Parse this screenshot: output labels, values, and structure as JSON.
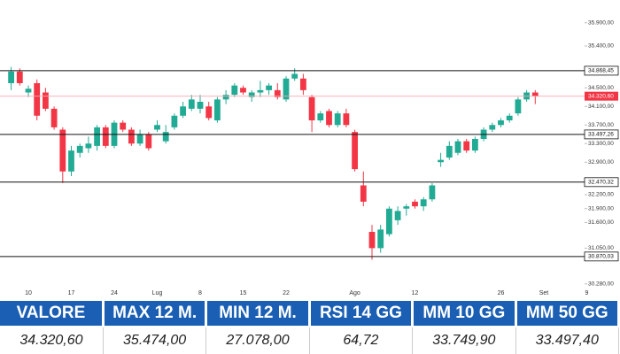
{
  "chart_data": {
    "type": "candlestick",
    "categories": [
      null,
      null,
      "10",
      null,
      null,
      null,
      null,
      "17",
      null,
      null,
      null,
      null,
      "24",
      null,
      null,
      null,
      null,
      "Lug",
      null,
      null,
      null,
      null,
      "8",
      null,
      null,
      null,
      null,
      "15",
      null,
      null,
      null,
      null,
      "22",
      null,
      null,
      null,
      null,
      null,
      null,
      null,
      "Ago",
      null,
      null,
      null,
      null,
      null,
      null,
      "12",
      null,
      null,
      null,
      null,
      null,
      null,
      null,
      null,
      null,
      "26",
      null,
      null,
      null,
      null,
      "Set",
      null,
      null,
      null,
      null,
      "9"
    ],
    "series": {
      "open": [
        34600,
        34850,
        34400,
        34600,
        34400,
        34050,
        33600,
        32700,
        33100,
        33200,
        33250,
        33650,
        33250,
        33750,
        33600,
        33300,
        33500,
        33600,
        33350,
        33650,
        33900,
        34050,
        34050,
        34100,
        33800,
        34250,
        34350,
        34500,
        34300,
        34400,
        34450,
        34450,
        34250,
        34700,
        34700,
        34300,
        33800,
        34000,
        33700,
        33950,
        33550,
        32400,
        31400,
        31050,
        31350,
        31650,
        31900,
        32050,
        31950,
        32100,
        32900,
        33000,
        33100,
        33350,
        33150,
        33400,
        33600,
        33700,
        33800,
        33950,
        34250,
        34400,
        null,
        null,
        null,
        null,
        null,
        null
      ],
      "high": [
        34950,
        34920,
        34550,
        34680,
        34500,
        34100,
        33650,
        33250,
        33300,
        33450,
        33700,
        33700,
        33800,
        33800,
        33650,
        33600,
        33550,
        33800,
        33700,
        33950,
        34200,
        34350,
        34350,
        34200,
        34300,
        34450,
        34600,
        34550,
        34450,
        34650,
        34600,
        34600,
        34750,
        34920,
        34800,
        34350,
        34000,
        34050,
        34000,
        34050,
        33600,
        32700,
        31550,
        31550,
        31950,
        31950,
        32000,
        32100,
        32150,
        32450,
        33100,
        33350,
        33400,
        33400,
        33450,
        33650,
        33750,
        33850,
        33950,
        34300,
        34450,
        34450,
        null,
        null,
        null,
        null,
        null,
        null
      ],
      "low": [
        34450,
        34550,
        34300,
        33800,
        34000,
        33600,
        32450,
        32600,
        33000,
        33100,
        33150,
        33200,
        33200,
        33550,
        33250,
        33250,
        33150,
        33550,
        33300,
        33600,
        33850,
        34000,
        33950,
        33800,
        33750,
        34150,
        34300,
        34350,
        34200,
        34300,
        34350,
        34250,
        34200,
        34650,
        34350,
        33550,
        33750,
        33650,
        33650,
        33650,
        32700,
        31950,
        30800,
        30950,
        31300,
        31550,
        31750,
        31900,
        31850,
        32050,
        32800,
        32950,
        33050,
        33100,
        33100,
        33350,
        33550,
        33650,
        33750,
        33900,
        34200,
        34150,
        null,
        null,
        null,
        null,
        null,
        null
      ],
      "close": [
        34850,
        34600,
        34480,
        33900,
        34050,
        33650,
        32700,
        33150,
        33250,
        33300,
        33650,
        33250,
        33750,
        33600,
        33300,
        33500,
        33200,
        33700,
        33550,
        33900,
        34100,
        34250,
        34200,
        33850,
        34250,
        34350,
        34550,
        34400,
        34400,
        34450,
        34550,
        34300,
        34700,
        34800,
        34450,
        33800,
        33950,
        33700,
        33950,
        33700,
        32750,
        32050,
        31050,
        31450,
        31900,
        31850,
        31950,
        31950,
        32100,
        32400,
        32950,
        33250,
        33350,
        33150,
        33400,
        33600,
        33700,
        33800,
        33900,
        34250,
        34400,
        34320.6,
        null,
        null,
        null,
        null,
        null,
        null
      ]
    },
    "up_color": "#22ab94",
    "down_color": "#f23645",
    "ylim": [
      30200,
      36200
    ],
    "yticks": [
      {
        "value": 35900,
        "label": "35.900,00"
      },
      {
        "value": 35400,
        "label": "35.400,00"
      },
      {
        "value": 34500,
        "label": "34.500,00"
      },
      {
        "value": 34100,
        "label": "34.100,00"
      },
      {
        "value": 33700,
        "label": "33.700,00"
      },
      {
        "value": 33300,
        "label": "33.300,00"
      },
      {
        "value": 32900,
        "label": "32.900,00"
      },
      {
        "value": 32200,
        "label": "32.200,00"
      },
      {
        "value": 31900,
        "label": "31.900,00"
      },
      {
        "value": 31600,
        "label": "31.600,00"
      },
      {
        "value": 31050,
        "label": "31.050,00"
      },
      {
        "value": 30280,
        "label": "30.280,00"
      }
    ],
    "hlines": [
      {
        "value": 34868.45,
        "label": "34.868,45"
      },
      {
        "value": 33497.26,
        "label": "33.497,26"
      },
      {
        "value": 32470.32,
        "label": "32.470,32"
      },
      {
        "value": 30870.03,
        "label": "30.870,03"
      }
    ],
    "last_price": {
      "value": 34320.6,
      "label": "34.320,60"
    }
  },
  "table": {
    "headers": [
      "VALORE",
      "MAX 12 M.",
      "MIN 12 M.",
      "RSI 14 GG",
      "MM 10 GG",
      "MM 50 GG"
    ],
    "rows": [
      [
        "34.320,60",
        "35.474,00",
        "27.078,00",
        "64,72",
        "33.749,90",
        "33.497,40"
      ]
    ]
  }
}
